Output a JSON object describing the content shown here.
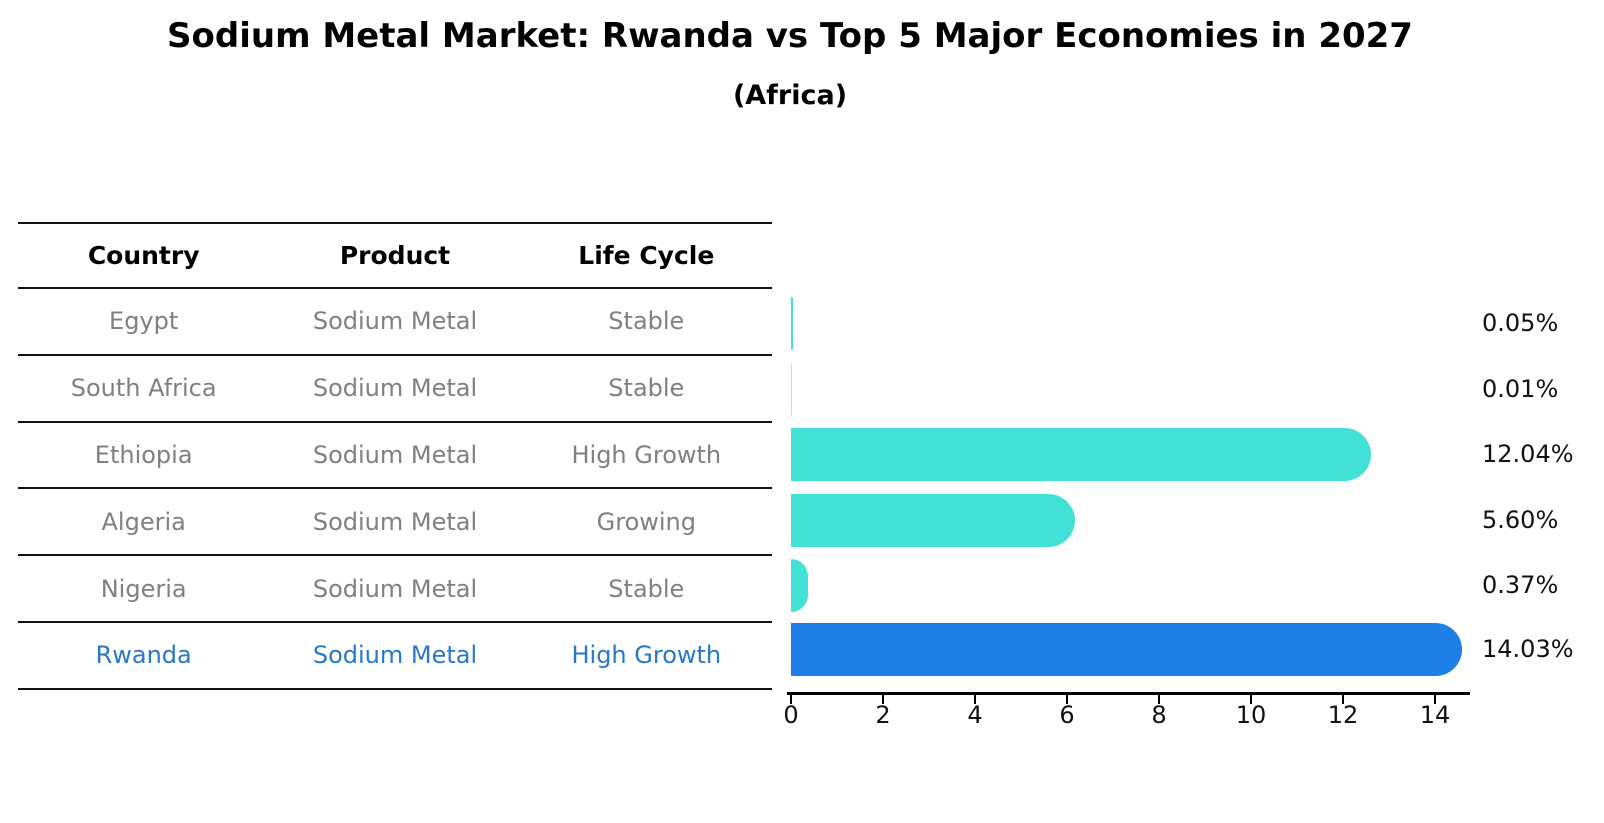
{
  "title": "Sodium Metal Market: Rwanda vs Top 5 Major Economies in 2027",
  "subtitle": "(Africa)",
  "table": {
    "headers": [
      "Country",
      "Product",
      "Life Cycle"
    ],
    "rows": [
      {
        "country": "Egypt",
        "product": "Sodium Metal",
        "life_cycle": "Stable",
        "highlight": false
      },
      {
        "country": "South Africa",
        "product": "Sodium Metal",
        "life_cycle": "Stable",
        "highlight": false
      },
      {
        "country": "Ethiopia",
        "product": "Sodium Metal",
        "life_cycle": "High Growth",
        "highlight": false
      },
      {
        "country": "Algeria",
        "product": "Sodium Metal",
        "life_cycle": "Growing",
        "highlight": false
      },
      {
        "country": "Nigeria",
        "product": "Sodium Metal",
        "life_cycle": "Stable",
        "highlight": false
      },
      {
        "country": "Rwanda",
        "product": "Sodium Metal",
        "life_cycle": "High Growth",
        "highlight": true
      }
    ]
  },
  "chart_data": {
    "type": "bar",
    "orientation": "horizontal",
    "title": "Sodium Metal Market: Rwanda vs Top 5 Major Economies in 2027",
    "subtitle": "(Africa)",
    "categories": [
      "Egypt",
      "South Africa",
      "Ethiopia",
      "Algeria",
      "Nigeria",
      "Rwanda"
    ],
    "values": [
      0.05,
      0.01,
      12.04,
      5.6,
      0.37,
      14.03
    ],
    "value_labels": [
      "0.05%",
      "0.01%",
      "12.04%",
      "5.60%",
      "0.37%",
      "14.03%"
    ],
    "unit": "%",
    "x_ticks": [
      0,
      2,
      4,
      6,
      8,
      10,
      12,
      14
    ],
    "xlim": [
      0,
      14.8
    ],
    "grid": false,
    "legend": "none",
    "bar_color": "#43E0D8",
    "highlight_color": "#1E80E6",
    "highlight_index": 5,
    "highlight_text_color": "#2878C8"
  }
}
